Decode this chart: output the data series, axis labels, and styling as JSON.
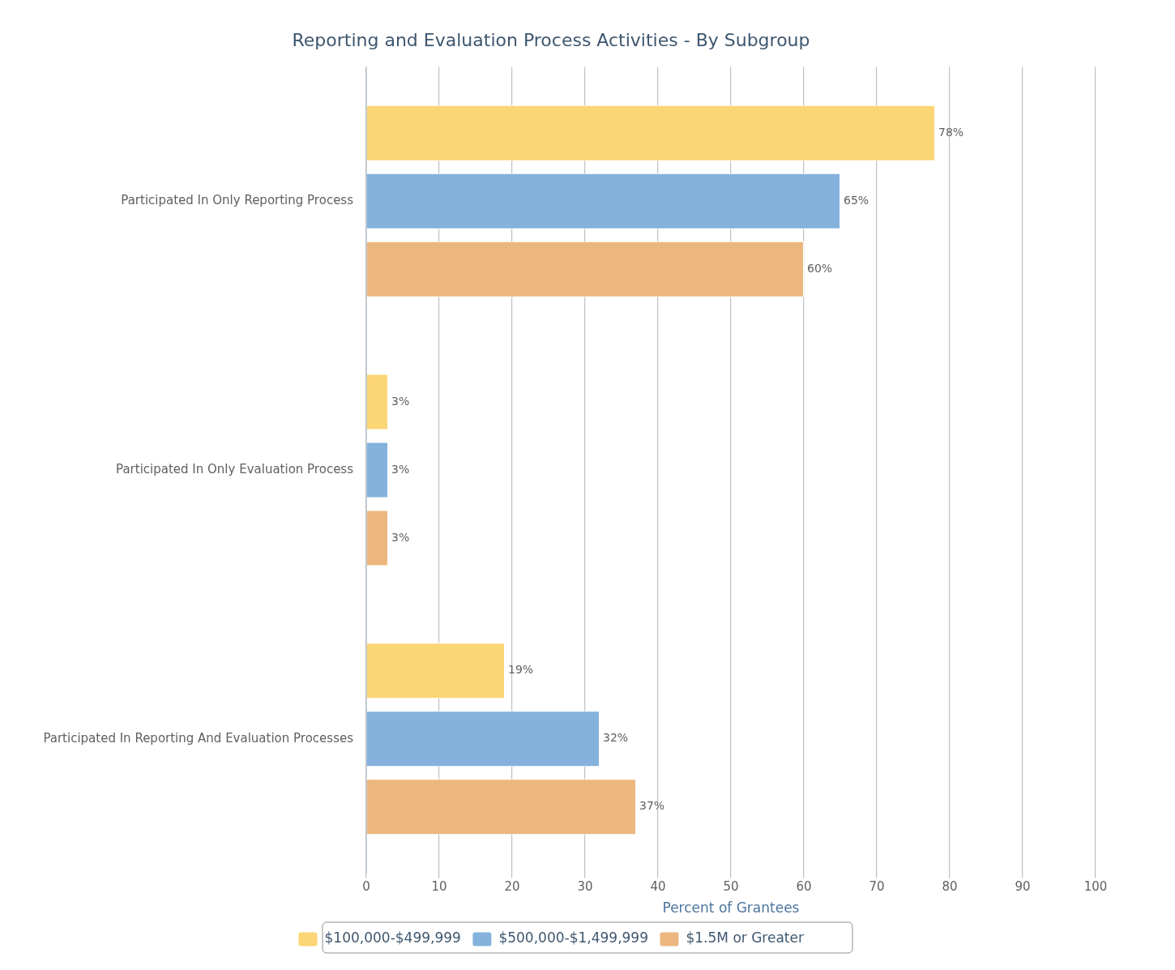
{
  "chart_data": {
    "type": "bar",
    "orientation": "horizontal",
    "title": "Reporting and Evaluation Process Activities - By Subgroup",
    "xlabel": "Percent of Grantees",
    "categories": [
      "Participated In Only Reporting Process",
      "Participated In Only Evaluation Process",
      "Participated In Reporting And Evaluation Processes"
    ],
    "series": [
      {
        "name": "$100,000-$499,999",
        "color": "#fcd575",
        "values": [
          78,
          3,
          19
        ],
        "value_labels": [
          "78%",
          "3%",
          "19%"
        ]
      },
      {
        "name": "$500,000-$1,499,999",
        "color": "#84b2dc",
        "values": [
          65,
          3,
          32
        ],
        "value_labels": [
          "65%",
          "3%",
          "32%"
        ]
      },
      {
        "name": "$1.5M or Greater",
        "color": "#ecb77e",
        "values": [
          60,
          3,
          37
        ],
        "value_labels": [
          "60%",
          "3%",
          "37%"
        ]
      }
    ],
    "xlim": [
      0,
      100
    ],
    "xticks": [
      0,
      10,
      20,
      30,
      40,
      50,
      60,
      70,
      80,
      90,
      100
    ],
    "grid": "x",
    "legend": "bottom"
  }
}
